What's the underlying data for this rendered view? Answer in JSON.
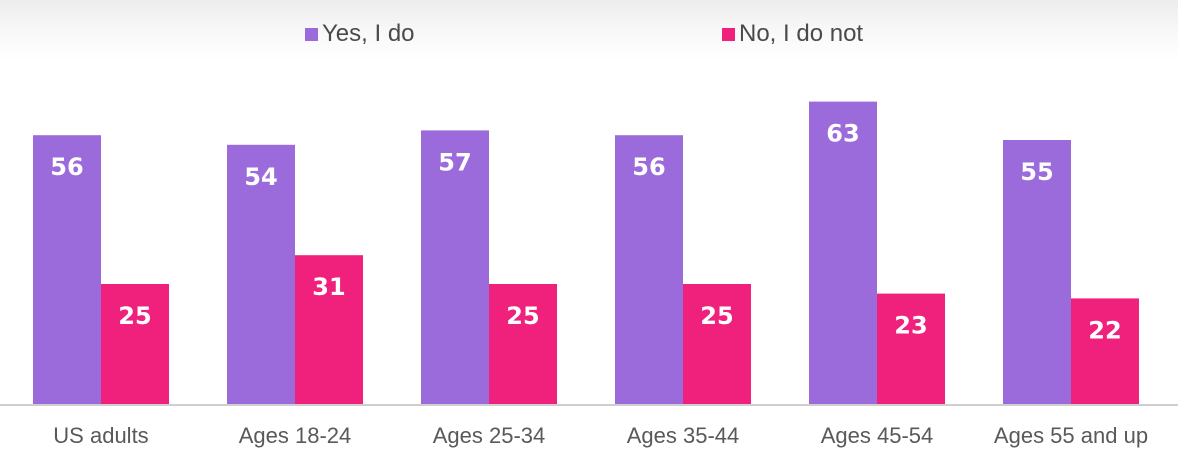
{
  "chart_data": {
    "type": "bar",
    "categories": [
      "US adults",
      "Ages 18-24",
      "Ages 25-34",
      "Ages 35-44",
      "Ages 45-54",
      "Ages 55 and up"
    ],
    "series": [
      {
        "name": "Yes, I do",
        "color": "#9b6bdc",
        "values": [
          56,
          54,
          57,
          56,
          63,
          55
        ]
      },
      {
        "name": "No, I do not",
        "color": "#f0217c",
        "values": [
          25,
          31,
          25,
          25,
          23,
          22
        ]
      }
    ],
    "title": "",
    "xlabel": "",
    "ylabel": "",
    "ylim": [
      0,
      65
    ],
    "grid": false,
    "legend": "top-center",
    "axis_color": "#cfcfcf"
  }
}
